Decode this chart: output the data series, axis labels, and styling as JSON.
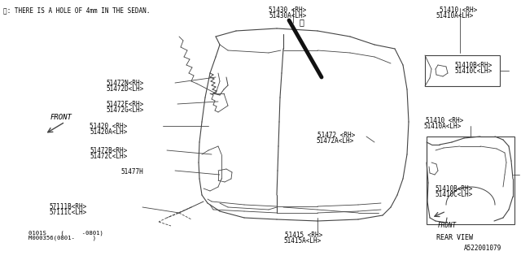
{
  "bg_color": "#ffffff",
  "line_color": "#444444",
  "text_color": "#000000",
  "title_note": "※: THERE IS A HOLE OF 4mm IN THE SEDAN.",
  "diagram_id": "A522001079",
  "code_line1": "0101S    (     -0801)",
  "code_line2": "M000356(0801-     )",
  "rear_view_label": "REAR VIEW",
  "front_label": "FRONT",
  "front_label2": "FRONT",
  "figsize": [
    6.4,
    3.2
  ],
  "dpi": 100
}
